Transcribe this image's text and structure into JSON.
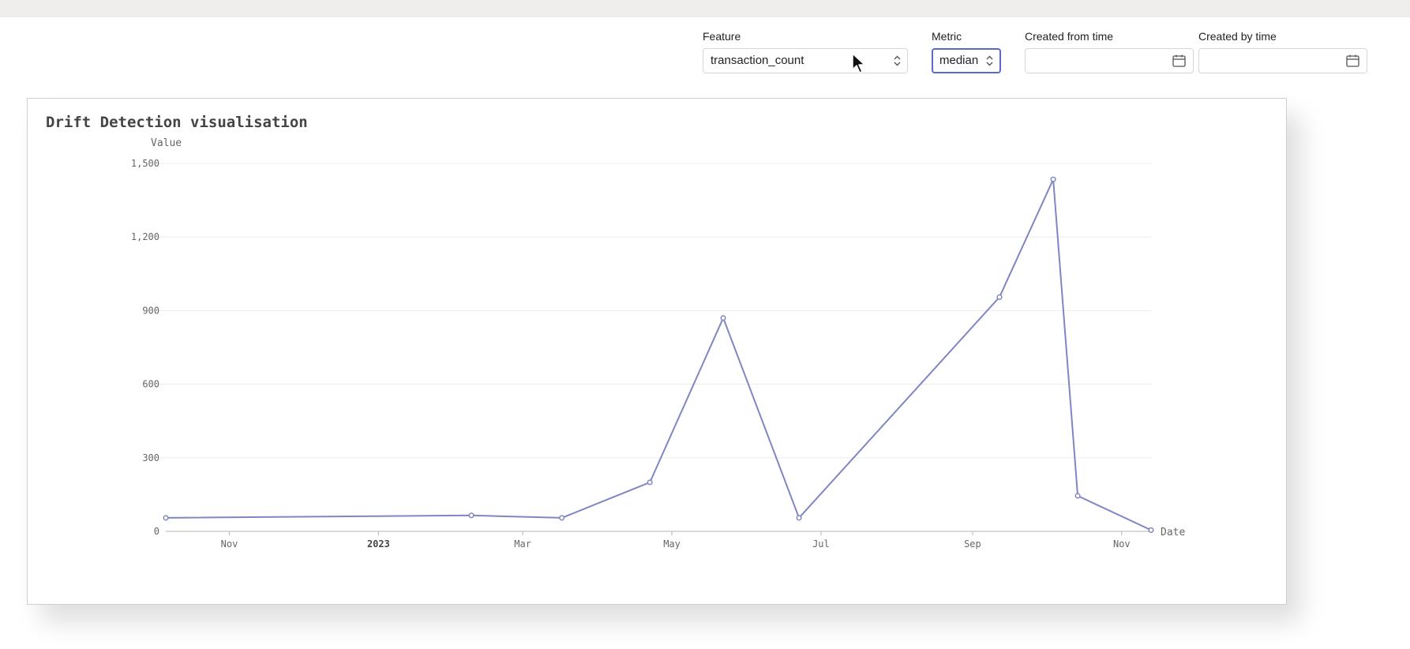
{
  "filters": {
    "feature": {
      "label": "Feature",
      "value": "transaction_count"
    },
    "metric": {
      "label": "Metric",
      "value": "median"
    },
    "created_from": {
      "label": "Created from time",
      "value": ""
    },
    "created_by": {
      "label": "Created by time",
      "value": ""
    }
  },
  "chart_data": {
    "type": "line",
    "title": "Drift Detection visualisation",
    "xlabel": "Date",
    "ylabel": "Value",
    "ylim": [
      0,
      1500
    ],
    "yticks": [
      0,
      300,
      600,
      900,
      1200,
      1500
    ],
    "ytick_labels": [
      "0",
      "300",
      "600",
      "900",
      "1,200",
      "1,500"
    ],
    "xlim": [
      "2022-10-06",
      "2023-11-13"
    ],
    "xticks": [
      {
        "date": "2022-11-01",
        "label": "Nov"
      },
      {
        "date": "2023-01-01",
        "label": "2023"
      },
      {
        "date": "2023-03-01",
        "label": "Mar"
      },
      {
        "date": "2023-05-01",
        "label": "May"
      },
      {
        "date": "2023-07-01",
        "label": "Jul"
      },
      {
        "date": "2023-09-01",
        "label": "Sep"
      },
      {
        "date": "2023-11-01",
        "label": "Nov"
      }
    ],
    "grid": true,
    "color": "#7f86c4",
    "series": [
      {
        "x": [
          "2022-10-06",
          "2023-02-08",
          "2023-03-17",
          "2023-04-22",
          "2023-05-22",
          "2023-06-22",
          "2023-09-12",
          "2023-10-04",
          "2023-10-14",
          "2023-11-13"
        ],
        "y": [
          55,
          65,
          55,
          200,
          870,
          55,
          955,
          1435,
          145,
          5
        ]
      }
    ]
  }
}
